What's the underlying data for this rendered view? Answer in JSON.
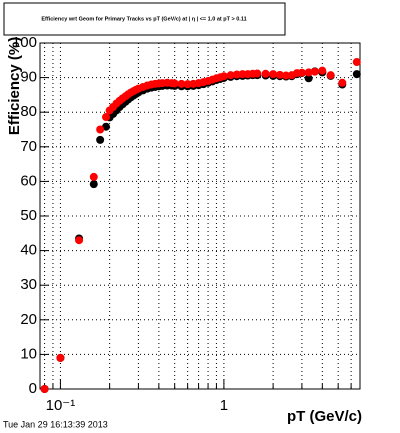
{
  "chart_data": {
    "type": "scatter",
    "title": "Efficiency wrt Geom for Primary Tracks vs pT (GeV/c) at | η | <= 1.0 at pT > 0.11",
    "x_label": "pT (GeV/c)",
    "y_label": "Efficiency (%)",
    "timestamp": "Tue Jan 29 16:13:39 2013",
    "x_log": true,
    "grid": true,
    "xlim": [
      0.075,
      6.8
    ],
    "ylim": [
      0,
      100
    ],
    "xticks": [
      {
        "value": 0.1,
        "label": "10⁻¹"
      },
      {
        "value": 1,
        "label": "1"
      }
    ],
    "xminorticks": [
      0.08,
      0.09,
      0.2,
      0.3,
      0.4,
      0.5,
      0.6,
      0.7,
      0.8,
      0.9,
      2,
      3,
      4,
      5,
      6
    ],
    "yticks": [
      0,
      10,
      20,
      30,
      40,
      50,
      60,
      70,
      80,
      90,
      100
    ],
    "x": [
      0.08,
      0.1,
      0.13,
      0.16,
      0.175,
      0.19,
      0.2,
      0.21,
      0.22,
      0.23,
      0.24,
      0.25,
      0.26,
      0.27,
      0.28,
      0.29,
      0.3,
      0.32,
      0.34,
      0.36,
      0.38,
      0.4,
      0.42,
      0.45,
      0.48,
      0.5,
      0.55,
      0.6,
      0.65,
      0.7,
      0.75,
      0.8,
      0.85,
      0.9,
      0.95,
      1.0,
      1.1,
      1.2,
      1.3,
      1.4,
      1.5,
      1.6,
      1.8,
      2.0,
      2.2,
      2.4,
      2.6,
      2.8,
      3.0,
      3.3,
      3.6,
      4.0,
      4.5,
      5.3,
      6.5
    ],
    "series": [
      {
        "color": "#000000",
        "values": [
          0,
          9,
          43.5,
          59.2,
          72,
          75.8,
          78.5,
          79.5,
          80.5,
          81.5,
          82.3,
          83,
          83.7,
          84.3,
          84.8,
          85.3,
          85.7,
          86.3,
          86.8,
          87.1,
          87.3,
          87.5,
          87.6,
          87.7,
          87.7,
          87.6,
          87.5,
          87.5,
          87.6,
          87.8,
          88.1,
          88.5,
          88.9,
          89.3,
          89.6,
          89.9,
          90.2,
          90.4,
          90.5,
          90.6,
          90.7,
          90.7,
          90.6,
          90.5,
          90.4,
          90.3,
          90.4,
          91,
          91.3,
          89.8,
          91.8,
          91.5,
          90.5,
          88,
          91
        ]
      },
      {
        "color": "#ff0000",
        "values": [
          0,
          9,
          43,
          61.3,
          75,
          78.6,
          80.5,
          81.5,
          82.5,
          83.3,
          84,
          84.6,
          85.2,
          85.7,
          86.1,
          86.5,
          86.8,
          87.3,
          87.7,
          88,
          88.2,
          88.3,
          88.4,
          88.5,
          88.4,
          88.3,
          88.2,
          88.1,
          88.2,
          88.4,
          88.7,
          89,
          89.4,
          89.8,
          90.1,
          90.4,
          90.7,
          90.9,
          91,
          91,
          91.1,
          91.2,
          91.1,
          91,
          90.8,
          90.6,
          90.7,
          91.3,
          91.4,
          91.5,
          91.7,
          92,
          90.7,
          88.5,
          94.5
        ]
      }
    ]
  }
}
